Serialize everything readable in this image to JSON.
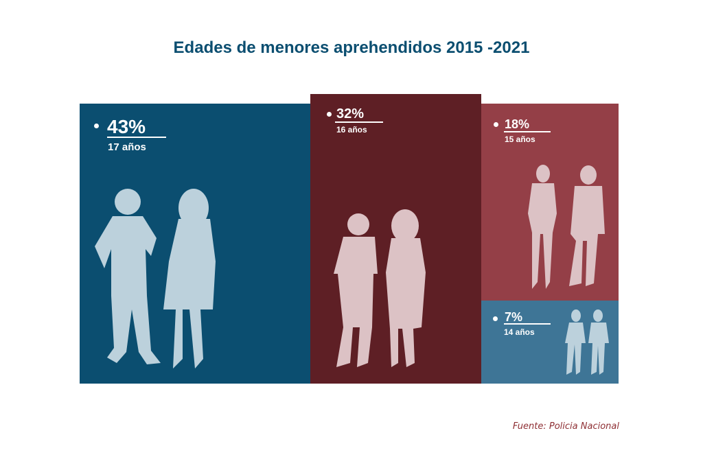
{
  "chart_data": {
    "type": "treemap",
    "title": "Edades de menores aprehendidos 2015 -2021",
    "unit": "%",
    "items": [
      {
        "label_value": "43%",
        "value": 43,
        "category": "17 años",
        "color": "#0b4e70"
      },
      {
        "label_value": "32%",
        "value": 32,
        "category": "16 años",
        "color": "#5e1f25"
      },
      {
        "label_value": "18%",
        "value": 18,
        "category": "15 años",
        "color": "#943f47"
      },
      {
        "label_value": "7%",
        "value": 7,
        "category": "14 años",
        "color": "#3e7596"
      }
    ],
    "figure_colors": {
      "light_blue": "#bcd1dc",
      "pink": "#dcc2c5"
    },
    "source": "Fuente: Policia Nacional"
  }
}
